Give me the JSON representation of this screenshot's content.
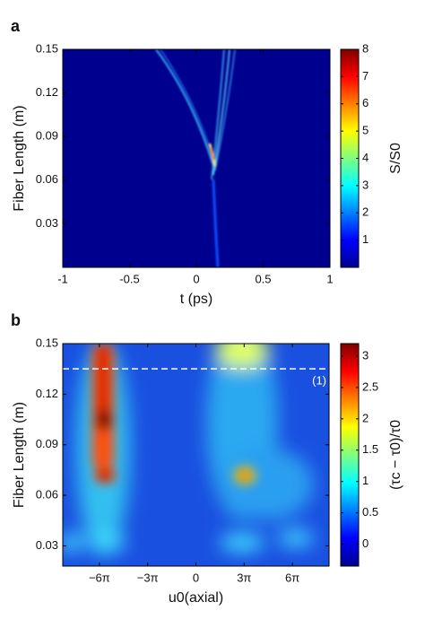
{
  "chart_data": [
    {
      "type": "heatmap",
      "panel_label": "a",
      "x_label": "t (ps)",
      "y_label": "Fiber Length (m)",
      "colorbar_label": "S/S0",
      "xlim": [
        -1,
        1
      ],
      "ylim": [
        0,
        0.15
      ],
      "xticks": [
        -1,
        -0.5,
        0,
        0.5,
        1
      ],
      "yticks": [
        0.03,
        0.06,
        0.09,
        0.12,
        0.15
      ],
      "clim": [
        0,
        8
      ],
      "cticks": [
        1,
        2,
        3,
        4,
        5,
        6,
        7,
        8
      ],
      "colormap": "jet"
    },
    {
      "type": "heatmap",
      "panel_label": "b",
      "x_label": "u0(axial)",
      "y_label": "Fiber Length (m)",
      "colorbar_label": "(τc − τ0)/τ0",
      "xlim": [
        -26,
        26
      ],
      "ylim": [
        0.018,
        0.15
      ],
      "xticks": [
        {
          "value": -18.85,
          "label": "−6π"
        },
        {
          "value": -9.42,
          "label": "−3π"
        },
        0,
        {
          "value": 9.42,
          "label": "3π"
        },
        {
          "value": 18.85,
          "label": "6π"
        }
      ],
      "yticks": [
        0.03,
        0.06,
        0.09,
        0.12,
        0.15
      ],
      "clim": [
        -0.35,
        3.2
      ],
      "cticks": [
        0,
        0.5,
        1,
        1.5,
        2,
        2.5,
        3
      ],
      "colormap": "jet",
      "annotations": [
        {
          "text": "(1)",
          "y": 0.135,
          "color": "#ffffff"
        }
      ]
    }
  ]
}
